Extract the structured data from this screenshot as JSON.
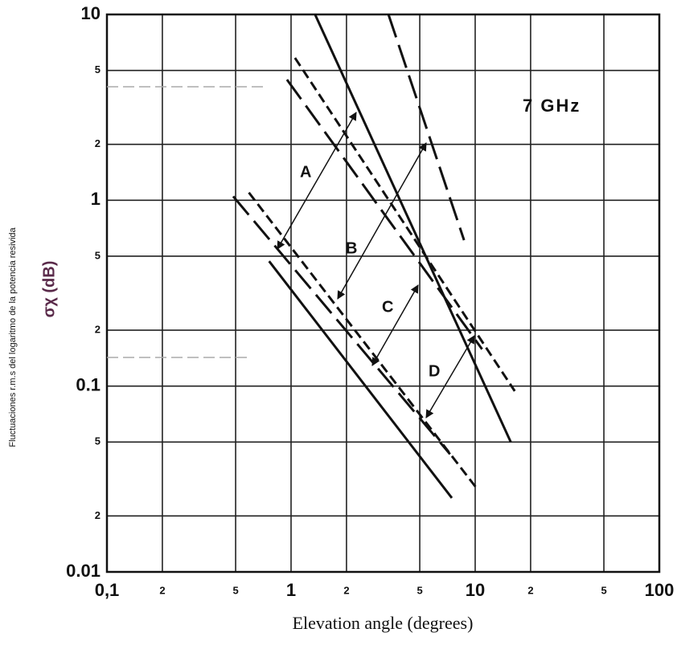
{
  "chart_data": {
    "type": "line",
    "annotation": "7 GHz",
    "xlabel": "Elevation angle (degrees)",
    "ylabel": "σχ (dB)",
    "side_label": "Fluctuaciones r.m.s  del logaritmo de la potencia resivida",
    "arrow_labels": [
      "A",
      "B",
      "C",
      "D"
    ],
    "xscale": "log",
    "yscale": "log",
    "grid": true,
    "xlim": [
      0.1,
      100
    ],
    "ylim": [
      0.01,
      10
    ],
    "xticks": [
      {
        "value": 0.1,
        "label": "0,1"
      },
      {
        "value": 0.2,
        "label": "2"
      },
      {
        "value": 0.5,
        "label": "5"
      },
      1,
      {
        "value": 2,
        "label": "2"
      },
      {
        "value": 5,
        "label": "5"
      },
      10,
      {
        "value": 20,
        "label": "2"
      },
      {
        "value": 50,
        "label": "5"
      },
      100
    ],
    "yticks": [
      0.01,
      {
        "value": 0.02,
        "label": "2"
      },
      {
        "value": 0.05,
        "label": "5"
      },
      0.1,
      {
        "value": 0.2,
        "label": "2"
      },
      {
        "value": 0.5,
        "label": "5"
      },
      1,
      {
        "value": 2,
        "label": "2"
      },
      {
        "value": 5,
        "label": "5"
      },
      10
    ],
    "series": [
      {
        "color": "#111",
        "style": "solid",
        "x": [
          1.35,
          15.6
        ],
        "values": [
          10,
          0.05
        ]
      },
      {
        "color": "#111",
        "style": "long-dashed",
        "x": [
          3.38,
          8.7
        ],
        "values": [
          10,
          0.61
        ]
      },
      {
        "color": "#111",
        "style": "dashed",
        "x": [
          1.05,
          16.4
        ],
        "values": [
          5.84,
          0.094
        ]
      },
      {
        "color": "#111",
        "style": "long-dashed",
        "x": [
          0.95,
          10.9
        ],
        "values": [
          4.46,
          0.158
        ]
      },
      {
        "color": "#111",
        "style": "long-dashed",
        "x": [
          0.485,
          7.3
        ],
        "values": [
          1.05,
          0.043
        ]
      },
      {
        "color": "#111",
        "style": "dashed",
        "x": [
          0.59,
          10.1
        ],
        "values": [
          1.1,
          0.0285
        ]
      },
      {
        "color": "#111",
        "style": "solid",
        "x": [
          0.76,
          7.47
        ],
        "values": [
          0.47,
          0.025
        ]
      }
    ]
  }
}
